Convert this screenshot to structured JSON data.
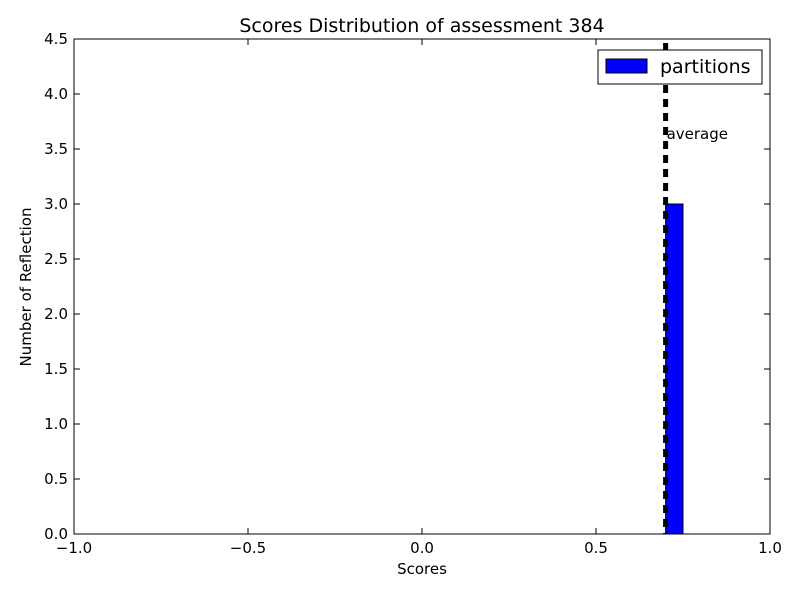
{
  "chart_data": {
    "type": "bar",
    "title": "Scores Distribution of assessment 384",
    "xlabel": "Scores",
    "ylabel": "Number of Reflection",
    "xlim": [
      -1.0,
      1.0
    ],
    "ylim": [
      0.0,
      4.5
    ],
    "x_ticks": [
      "−1.0",
      "−0.5",
      "0.0",
      "0.5",
      "1.0"
    ],
    "y_ticks": [
      "0.0",
      "0.5",
      "1.0",
      "1.5",
      "2.0",
      "2.5",
      "3.0",
      "3.5",
      "4.0",
      "4.5"
    ],
    "grid": false,
    "legend_position": "top-right",
    "series": [
      {
        "name": "partitions",
        "color": "#0000ff",
        "bins": [
          {
            "start": 0.7,
            "end": 0.75,
            "value": 3
          }
        ]
      }
    ],
    "average": {
      "x": 0.7,
      "label": "average"
    }
  }
}
